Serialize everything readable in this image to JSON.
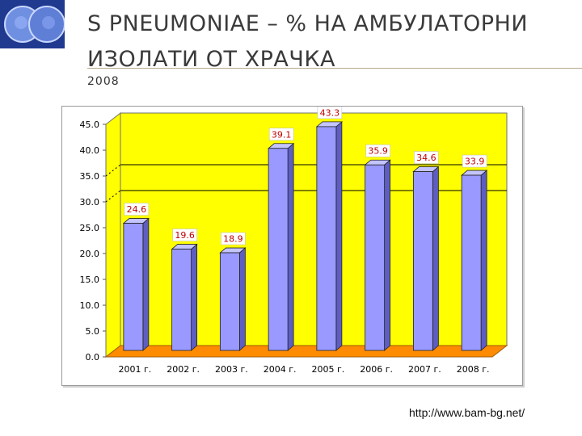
{
  "header": {
    "title_line1": "S PNEUMONIAE – % НА АМБУЛАТОРНИ",
    "title_line2": "ИЗОЛАТИ ОТ ХРАЧКА",
    "subtitle": "2008"
  },
  "footer": {
    "url": "http://www.bam-bg.net/"
  },
  "colors": {
    "plot_background": "#ffff00",
    "floor": "#ff8c00",
    "bar_front": "#9999ff",
    "bar_side": "#5e5ec2",
    "bar_top": "#c4c4ff",
    "label_text": "#c00000"
  },
  "chart_data": {
    "type": "bar",
    "categories": [
      "2001 г.",
      "2002 г.",
      "2003 г.",
      "2004 г.",
      "2005 г.",
      "2006 г.",
      "2007 г.",
      "2008 г."
    ],
    "values": [
      24.6,
      19.6,
      18.9,
      39.1,
      43.3,
      35.9,
      34.6,
      33.9
    ],
    "data_labels": [
      "24.6",
      "19.6",
      "18.9",
      "39.1",
      "43.3",
      "35.9",
      "34.6",
      "33.9"
    ],
    "y_ticks": [
      "0.0",
      "5.0",
      "10.0",
      "15.0",
      "20.0",
      "25.0",
      "30.0",
      "35.0",
      "40.0",
      "45.0"
    ],
    "ylim": [
      0,
      45
    ],
    "gridlines": [
      30,
      35
    ],
    "style": "3d",
    "legend": "none"
  }
}
